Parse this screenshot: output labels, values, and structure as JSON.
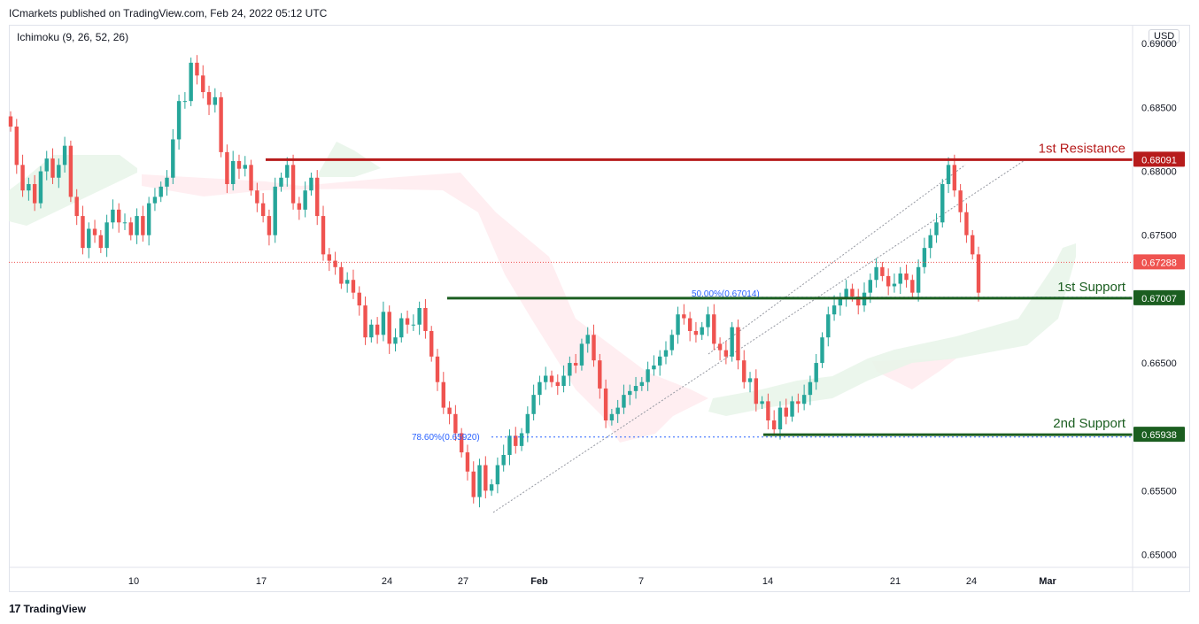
{
  "header": {
    "published": "ICmarkets published on TradingView.com, Feb 24, 2022 05:12 UTC",
    "indicator": "Ichimoku (9, 26, 52, 26)",
    "currency": "USD",
    "footer_logo": "17",
    "footer_brand": "TradingView"
  },
  "colors": {
    "up": "#26a69a",
    "down": "#ef5350",
    "resistance": "#b71c1c",
    "support": "#1b5e20",
    "fib": "#2962ff",
    "cloud_bull": "#e8f5e9",
    "cloud_bear": "#ffebee",
    "last_price": "#ef5350"
  },
  "chart_data": {
    "type": "candlestick",
    "ylim": [
      0.649,
      0.6914
    ],
    "y_ticks": [
      "0.69000",
      "0.68500",
      "0.68000",
      "0.67500",
      "0.66500",
      "0.65500",
      "0.65000"
    ],
    "x_labels": [
      "10",
      "17",
      "24",
      "27",
      "Feb",
      "7",
      "14",
      "21",
      "24",
      "Mar"
    ],
    "levels": [
      {
        "name": "1st Resistance",
        "value": 0.68091,
        "label": "0.68091",
        "color": "#b71c1c"
      },
      {
        "name": "1st Support",
        "value": 0.67007,
        "label": "0.67007",
        "color": "#1b5e20"
      },
      {
        "name": "2nd Support",
        "value": 0.65938,
        "label": "0.65938",
        "color": "#1b5e20"
      }
    ],
    "last_price": {
      "value": 0.67288,
      "label": "0.67288"
    },
    "fib_labels": [
      {
        "text": "50.00%(0.67014)",
        "value": 0.67014
      },
      {
        "text": "78.60%(0.65920)",
        "value": 0.6592
      }
    ],
    "trendline": {
      "start": 0.6533,
      "end": 0.681
    }
  }
}
